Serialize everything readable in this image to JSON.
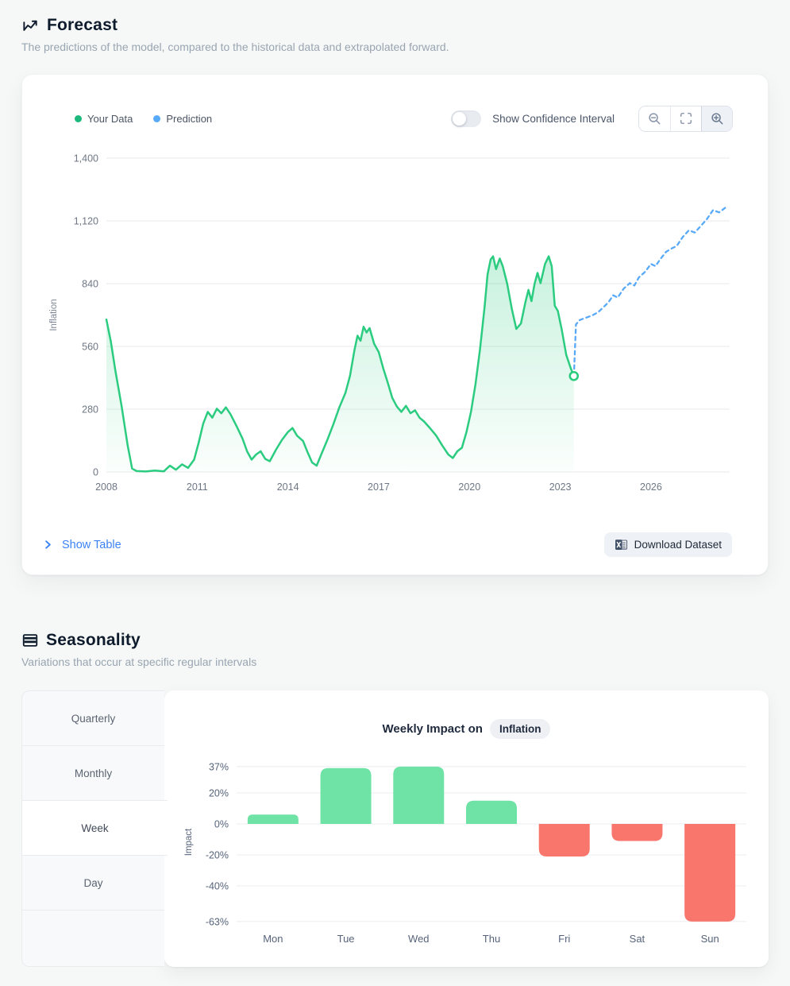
{
  "forecast": {
    "title": "Forecast",
    "subtitle": "The predictions of the model, compared to the historical data and extrapolated forward.",
    "legend": [
      {
        "label": "Your Data",
        "color": "#1db87b"
      },
      {
        "label": "Prediction",
        "color": "#58a9f8"
      }
    ],
    "confidence_toggle": {
      "label": "Show Confidence Interval",
      "on": false
    },
    "zoom_controls": [
      "zoom-out-icon",
      "fullscreen-reset-icon",
      "zoom-in-icon"
    ],
    "show_table_label": "Show Table",
    "download_label": "Download Dataset"
  },
  "seasonality": {
    "title": "Seasonality",
    "subtitle": "Variations that occur at specific regular intervals",
    "tabs": [
      "Quarterly",
      "Monthly",
      "Week",
      "Day"
    ],
    "active_tab": "Week",
    "chart_title_prefix": "Weekly Impact on",
    "badge": "Inflation"
  },
  "chart_data": [
    {
      "type": "line",
      "title": "Forecast",
      "ylabel": "Inflation",
      "ylim": [
        0,
        1400
      ],
      "xlim": [
        2008,
        2028.6
      ],
      "yticks": [
        0,
        280,
        560,
        840,
        1120,
        1400
      ],
      "ytick_labels": [
        "0",
        "280",
        "560",
        "840",
        "1,120",
        "1,400"
      ],
      "xticks": [
        2008,
        2011,
        2014,
        2017,
        2020,
        2023,
        2026
      ],
      "grid": true,
      "legend_position": "top-left",
      "series": [
        {
          "name": "Your Data",
          "style": "solid-area",
          "color": "#2bcc80",
          "points": [
            [
              2008,
              680
            ],
            [
              2008.15,
              580
            ],
            [
              2008.3,
              450
            ],
            [
              2008.5,
              295
            ],
            [
              2008.7,
              120
            ],
            [
              2008.85,
              15
            ],
            [
              2009,
              4
            ],
            [
              2009.3,
              2
            ],
            [
              2009.6,
              6
            ],
            [
              2009.9,
              3
            ],
            [
              2010.1,
              28
            ],
            [
              2010.3,
              10
            ],
            [
              2010.5,
              34
            ],
            [
              2010.7,
              18
            ],
            [
              2010.9,
              55
            ],
            [
              2011.05,
              130
            ],
            [
              2011.2,
              215
            ],
            [
              2011.35,
              268
            ],
            [
              2011.5,
              242
            ],
            [
              2011.65,
              282
            ],
            [
              2011.8,
              262
            ],
            [
              2011.95,
              288
            ],
            [
              2012.1,
              258
            ],
            [
              2012.3,
              205
            ],
            [
              2012.5,
              148
            ],
            [
              2012.65,
              92
            ],
            [
              2012.8,
              55
            ],
            [
              2012.95,
              78
            ],
            [
              2013.1,
              92
            ],
            [
              2013.25,
              58
            ],
            [
              2013.4,
              48
            ],
            [
              2013.6,
              98
            ],
            [
              2013.8,
              142
            ],
            [
              2014,
              178
            ],
            [
              2014.15,
              196
            ],
            [
              2014.3,
              162
            ],
            [
              2014.5,
              138
            ],
            [
              2014.65,
              88
            ],
            [
              2014.8,
              42
            ],
            [
              2014.95,
              28
            ],
            [
              2015.1,
              78
            ],
            [
              2015.3,
              142
            ],
            [
              2015.5,
              212
            ],
            [
              2015.7,
              288
            ],
            [
              2015.9,
              352
            ],
            [
              2016.05,
              428
            ],
            [
              2016.2,
              545
            ],
            [
              2016.3,
              608
            ],
            [
              2016.4,
              585
            ],
            [
              2016.5,
              648
            ],
            [
              2016.6,
              622
            ],
            [
              2016.7,
              642
            ],
            [
              2016.85,
              572
            ],
            [
              2017,
              535
            ],
            [
              2017.15,
              462
            ],
            [
              2017.3,
              398
            ],
            [
              2017.45,
              330
            ],
            [
              2017.6,
              292
            ],
            [
              2017.75,
              268
            ],
            [
              2017.9,
              295
            ],
            [
              2018.05,
              262
            ],
            [
              2018.2,
              275
            ],
            [
              2018.35,
              242
            ],
            [
              2018.5,
              225
            ],
            [
              2018.7,
              195
            ],
            [
              2018.9,
              162
            ],
            [
              2019.1,
              118
            ],
            [
              2019.3,
              78
            ],
            [
              2019.45,
              62
            ],
            [
              2019.6,
              92
            ],
            [
              2019.75,
              108
            ],
            [
              2019.9,
              178
            ],
            [
              2020.05,
              268
            ],
            [
              2020.2,
              392
            ],
            [
              2020.35,
              548
            ],
            [
              2020.5,
              735
            ],
            [
              2020.6,
              882
            ],
            [
              2020.7,
              948
            ],
            [
              2020.78,
              962
            ],
            [
              2020.88,
              905
            ],
            [
              2021,
              952
            ],
            [
              2021.1,
              918
            ],
            [
              2021.25,
              838
            ],
            [
              2021.4,
              728
            ],
            [
              2021.55,
              638
            ],
            [
              2021.7,
              662
            ],
            [
              2021.85,
              758
            ],
            [
              2021.95,
              812
            ],
            [
              2022.05,
              762
            ],
            [
              2022.15,
              838
            ],
            [
              2022.25,
              888
            ],
            [
              2022.35,
              842
            ],
            [
              2022.5,
              928
            ],
            [
              2022.62,
              962
            ],
            [
              2022.72,
              918
            ],
            [
              2022.82,
              742
            ],
            [
              2022.92,
              718
            ],
            [
              2023.05,
              635
            ],
            [
              2023.2,
              522
            ],
            [
              2023.35,
              462
            ],
            [
              2023.45,
              428
            ]
          ]
        },
        {
          "name": "Prediction",
          "style": "dashed",
          "color": "#58a9f8",
          "points": [
            [
              2023.45,
              428
            ],
            [
              2023.52,
              658
            ],
            [
              2023.65,
              678
            ],
            [
              2023.85,
              688
            ],
            [
              2024.05,
              698
            ],
            [
              2024.25,
              712
            ],
            [
              2024.45,
              738
            ],
            [
              2024.6,
              758
            ],
            [
              2024.75,
              788
            ],
            [
              2024.9,
              778
            ],
            [
              2025.1,
              818
            ],
            [
              2025.3,
              842
            ],
            [
              2025.45,
              832
            ],
            [
              2025.6,
              868
            ],
            [
              2025.8,
              892
            ],
            [
              2026,
              928
            ],
            [
              2026.15,
              918
            ],
            [
              2026.3,
              948
            ],
            [
              2026.5,
              982
            ],
            [
              2026.7,
              998
            ],
            [
              2026.85,
              1008
            ],
            [
              2027.05,
              1048
            ],
            [
              2027.25,
              1078
            ],
            [
              2027.45,
              1068
            ],
            [
              2027.65,
              1098
            ],
            [
              2027.85,
              1128
            ],
            [
              2028.05,
              1168
            ],
            [
              2028.25,
              1158
            ],
            [
              2028.45,
              1178
            ]
          ]
        }
      ]
    },
    {
      "type": "bar",
      "title": "Weekly Impact on Inflation",
      "ylabel": "Impact",
      "categories": [
        "Mon",
        "Tue",
        "Wed",
        "Thu",
        "Fri",
        "Sat",
        "Sun"
      ],
      "values": [
        6,
        36,
        37,
        15,
        -21,
        -11,
        -63
      ],
      "yticks": [
        37,
        20,
        0,
        -20,
        -40,
        -63
      ],
      "ytick_labels": [
        "37%",
        "20%",
        "0%",
        "-20%",
        "-40%",
        "-63%"
      ],
      "grid": true,
      "positive_color": "#6fe3a5",
      "negative_color": "#f8766c"
    }
  ]
}
